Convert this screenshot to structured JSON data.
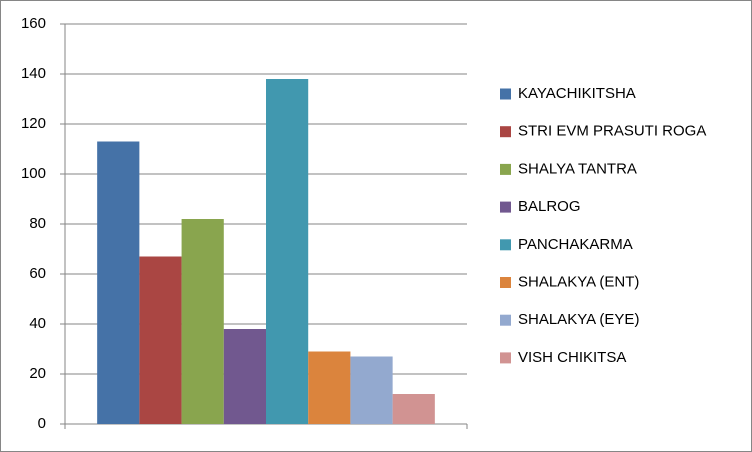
{
  "chart_data": {
    "type": "bar",
    "categories": [
      null
    ],
    "series": [
      {
        "name": "KAYACHIKITSHA",
        "color": "#4572a7",
        "values": [
          113
        ]
      },
      {
        "name": "STRI EVM PRASUTI ROGA",
        "color": "#aa4643",
        "values": [
          67
        ]
      },
      {
        "name": "SHALYA TANTRA",
        "color": "#89a54e",
        "values": [
          82
        ]
      },
      {
        "name": "BALROG",
        "color": "#71588f",
        "values": [
          38
        ]
      },
      {
        "name": "PANCHAKARMA",
        "color": "#4198af",
        "values": [
          138
        ]
      },
      {
        "name": "SHALAKYA (ENT)",
        "color": "#db843d",
        "values": [
          29
        ]
      },
      {
        "name": "SHALAKYA (EYE)",
        "color": "#93a9cf",
        "values": [
          27
        ]
      },
      {
        "name": "VISH CHIKITSA",
        "color": "#d19392",
        "values": [
          12
        ]
      }
    ],
    "ylim": [
      0,
      160
    ],
    "yticks": [
      0,
      20,
      40,
      60,
      80,
      100,
      120,
      140,
      160
    ],
    "grid": true,
    "legend": "right"
  }
}
